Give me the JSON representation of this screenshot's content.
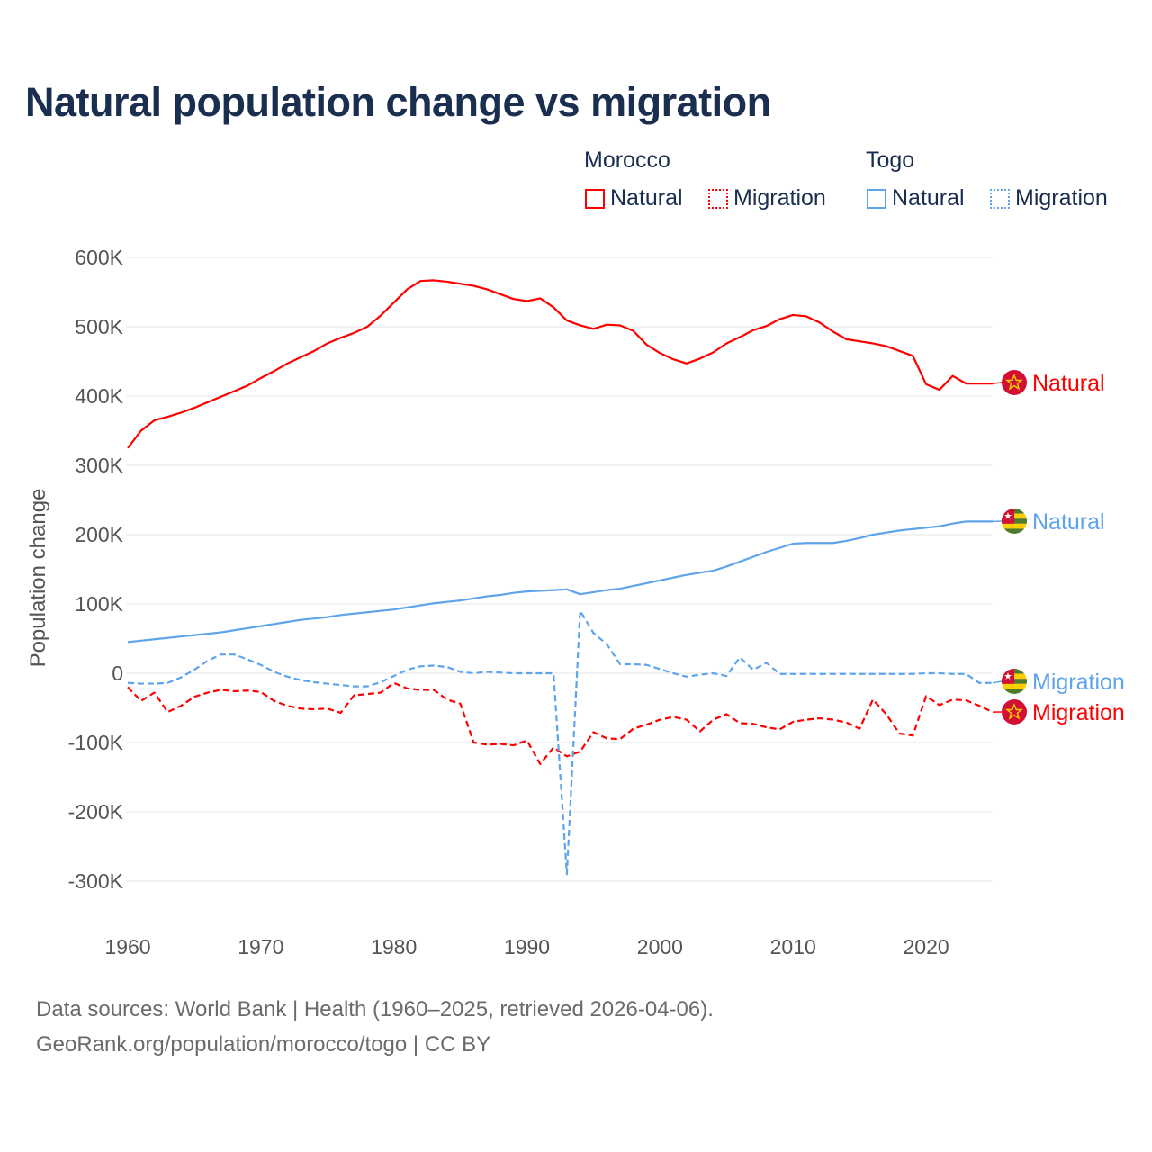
{
  "title": "Natural population change vs migration",
  "legend": {
    "groups": [
      {
        "name": "Morocco",
        "color": "#ff0000",
        "items": [
          "Natural",
          "Migration"
        ]
      },
      {
        "name": "Togo",
        "color": "#5ea4ea",
        "items": [
          "Natural",
          "Migration"
        ]
      }
    ]
  },
  "footer": {
    "line1": "Data sources: World Bank | Health (1960–2025, retrieved 2026-04-06).",
    "line2": "GeoRank.org/population/morocco/togo | CC BY"
  },
  "chart_data": {
    "type": "line",
    "title": "Natural population change vs migration",
    "ylabel": "Population change",
    "xlabel": "",
    "xlim": [
      1960,
      2025
    ],
    "ylim": [
      -300000,
      600000
    ],
    "x_ticks": [
      1960,
      1970,
      1980,
      1990,
      2000,
      2010,
      2020
    ],
    "x_tick_labels": [
      "1960",
      "1970",
      "1980",
      "1990",
      "2000",
      "2010",
      "2020"
    ],
    "y_ticks": [
      600000,
      500000,
      400000,
      300000,
      200000,
      100000,
      0,
      -100000,
      -200000,
      -300000
    ],
    "y_tick_labels": [
      "600K",
      "500K",
      "400K",
      "300K",
      "200K",
      "100K",
      "0",
      "-100K",
      "-200K",
      "-300K"
    ],
    "grid": true,
    "legend_position": "top-right",
    "x_start": 1960,
    "series": [
      {
        "name": "Morocco Natural",
        "end_label": "Natural",
        "country": "Morocco",
        "color": "#ff0000",
        "dash": false,
        "values_k": [
          325,
          350,
          365,
          370,
          376,
          383,
          391,
          399,
          407,
          415,
          426,
          436,
          447,
          456,
          465,
          476,
          484,
          491,
          500,
          516,
          535,
          554,
          566,
          567,
          565,
          562,
          559,
          554,
          547,
          540,
          537,
          541,
          528,
          509,
          502,
          497,
          503,
          502,
          494,
          474,
          462,
          453,
          447,
          454,
          463,
          476,
          485,
          495,
          501,
          511,
          517,
          515,
          506,
          493,
          482,
          479,
          476,
          472,
          465,
          458,
          417,
          409,
          429,
          418,
          418,
          418
        ]
      },
      {
        "name": "Morocco Migration",
        "end_label": "Migration",
        "country": "Morocco",
        "color": "#ff0000",
        "dash": true,
        "values_k": [
          -20,
          -40,
          -28,
          -56,
          -47,
          -34,
          -28,
          -24,
          -26,
          -25,
          -27,
          -40,
          -47,
          -51,
          -52,
          -51,
          -57,
          -32,
          -30,
          -28,
          -14,
          -22,
          -24,
          -24,
          -38,
          -44,
          -100,
          -103,
          -102,
          -104,
          -97,
          -131,
          -107,
          -120,
          -113,
          -85,
          -94,
          -95,
          -80,
          -74,
          -67,
          -63,
          -67,
          -84,
          -67,
          -59,
          -72,
          -73,
          -78,
          -81,
          -70,
          -67,
          -65,
          -67,
          -71,
          -80,
          -38,
          -59,
          -87,
          -90,
          -33,
          -46,
          -38,
          -39,
          -47,
          -56
        ]
      },
      {
        "name": "Togo Natural",
        "end_label": "Natural",
        "country": "Togo",
        "color": "#5ea4ea",
        "dash": false,
        "values_k": [
          45,
          47,
          49,
          51,
          53,
          55,
          57,
          59,
          62,
          65,
          68,
          71,
          74,
          77,
          79,
          81,
          84,
          86,
          88,
          90,
          92,
          95,
          98,
          101,
          103,
          105,
          108,
          111,
          113,
          116,
          118,
          119,
          120,
          121,
          114,
          117,
          120,
          122,
          126,
          130,
          134,
          138,
          142,
          145,
          148,
          154,
          161,
          168,
          175,
          181,
          187,
          188,
          188,
          188,
          191,
          195,
          200,
          203,
          206,
          208,
          210,
          212,
          216,
          219,
          219,
          219
        ]
      },
      {
        "name": "Togo Migration",
        "end_label": "Migration",
        "country": "Togo",
        "color": "#5ea4ea",
        "dash": true,
        "values_k": [
          -14,
          -15,
          -15,
          -14,
          -6,
          5,
          18,
          27,
          27,
          20,
          12,
          2,
          -5,
          -10,
          -13,
          -15,
          -17,
          -19,
          -19,
          -13,
          -4,
          5,
          10,
          11,
          9,
          2,
          0,
          2,
          1,
          0,
          0,
          0,
          0,
          -290,
          90,
          58,
          42,
          13,
          13,
          12,
          6,
          0,
          -5,
          -2,
          0,
          -4,
          23,
          5,
          15,
          -1,
          -1,
          -1,
          -1,
          -1,
          -1,
          -1,
          -1,
          -1,
          -1,
          -1,
          0,
          0,
          -1,
          -1,
          -14,
          -14
        ]
      }
    ]
  }
}
